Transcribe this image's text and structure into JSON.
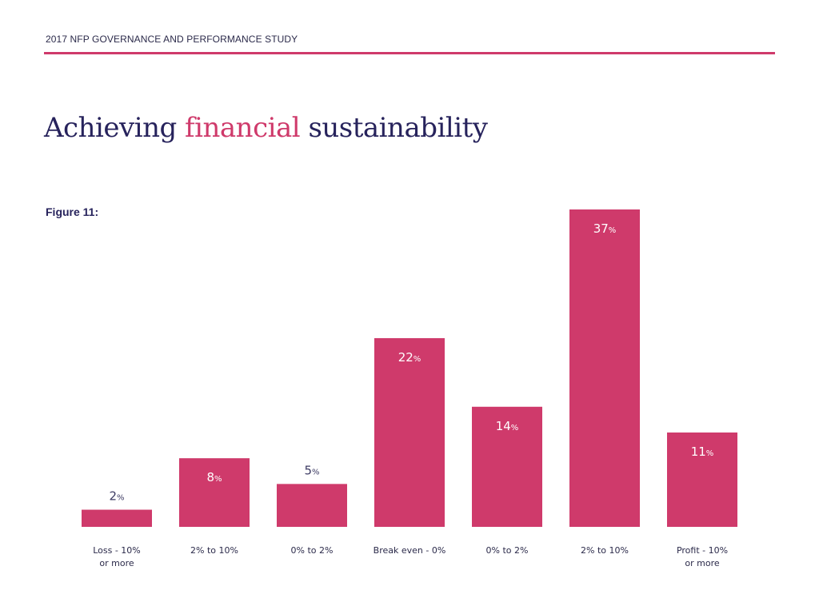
{
  "header": {
    "study": "2017 NFP GOVERNANCE AND PERFORMANCE STUDY"
  },
  "title": {
    "part1": "Achieving",
    "accent": "financial",
    "part2": "sustainability"
  },
  "figure": {
    "label": "Figure 11:"
  },
  "colors": {
    "bar": "#cf3a6b",
    "title": "#27235c",
    "rule": "#cf3a6b",
    "label_dark": "#3d3b63"
  },
  "chart_data": {
    "type": "bar",
    "title": "",
    "categories": [
      [
        "Loss - 10%",
        "or more"
      ],
      [
        "2% to 10%"
      ],
      [
        "0% to 2%"
      ],
      [
        "Break even - 0%"
      ],
      [
        "0% to 2%"
      ],
      [
        "2% to 10%"
      ],
      [
        "Profit - 10%",
        "or more"
      ]
    ],
    "values": [
      2,
      8,
      5,
      22,
      14,
      37,
      11
    ],
    "value_suffix": "%",
    "xlabel": "",
    "ylabel": "",
    "ylim": [
      0,
      37
    ],
    "grid": false,
    "legend": "none"
  }
}
